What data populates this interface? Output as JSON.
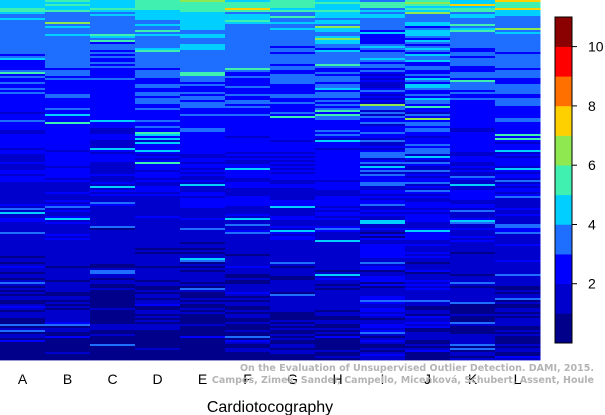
{
  "chart_data": {
    "type": "heatmap",
    "title": "",
    "xlabel": "Cardiotocography",
    "ylabel": "",
    "categories": [
      "A",
      "B",
      "C",
      "D",
      "E",
      "F",
      "G",
      "H",
      "I",
      "J",
      "K",
      "L"
    ],
    "colorbar": {
      "range": [
        0,
        11
      ],
      "ticks": [
        2,
        4,
        6,
        8,
        10
      ],
      "bins": [
        {
          "min": 0,
          "max": 1,
          "color": "#00008b"
        },
        {
          "min": 1,
          "max": 2,
          "color": "#0000cd"
        },
        {
          "min": 2,
          "max": 3,
          "color": "#0000ff"
        },
        {
          "min": 3,
          "max": 4,
          "color": "#1e6fff"
        },
        {
          "min": 4,
          "max": 5,
          "color": "#00cfff"
        },
        {
          "min": 5,
          "max": 6,
          "color": "#40f0b0"
        },
        {
          "min": 6,
          "max": 7,
          "color": "#90e850"
        },
        {
          "min": 7,
          "max": 8,
          "color": "#ffd000"
        },
        {
          "min": 8,
          "max": 9,
          "color": "#ff7000"
        },
        {
          "min": 9,
          "max": 10,
          "color": "#ff0000"
        },
        {
          "min": 10,
          "max": 11,
          "color": "#8b0000"
        }
      ]
    },
    "row_count": 180,
    "column_profiles": [
      {
        "column": "A",
        "top_value": 4.3,
        "bottom_value": 0.6,
        "noise": 0.5
      },
      {
        "column": "B",
        "top_value": 4.6,
        "bottom_value": 0.8,
        "noise": 0.5
      },
      {
        "column": "C",
        "top_value": 4.4,
        "bottom_value": 0.5,
        "noise": 0.45
      },
      {
        "column": "D",
        "top_value": 4.9,
        "bottom_value": 0.6,
        "noise": 0.5
      },
      {
        "column": "E",
        "top_value": 5.3,
        "bottom_value": 0.4,
        "noise": 0.45
      },
      {
        "column": "F",
        "top_value": 4.8,
        "bottom_value": 0.6,
        "noise": 0.5
      },
      {
        "column": "G",
        "top_value": 4.6,
        "bottom_value": 0.7,
        "noise": 0.55
      },
      {
        "column": "H",
        "top_value": 4.7,
        "bottom_value": 0.9,
        "noise": 0.6
      },
      {
        "column": "I",
        "top_value": 3.9,
        "bottom_value": 1.4,
        "noise": 1.1
      },
      {
        "column": "J",
        "top_value": 4.6,
        "bottom_value": 1.2,
        "noise": 1.0
      },
      {
        "column": "K",
        "top_value": 4.4,
        "bottom_value": 0.8,
        "noise": 0.6
      },
      {
        "column": "L",
        "top_value": 4.6,
        "bottom_value": 0.8,
        "noise": 0.55
      }
    ],
    "grid": false,
    "legend": "right"
  },
  "credit": {
    "line1": "On the Evaluation of Unsupervised Outlier Detection. DAMI, 2015.",
    "line2": "Campos, Zimek, Sander, Campello, Micenková, Schubert, Assent, Houle"
  }
}
